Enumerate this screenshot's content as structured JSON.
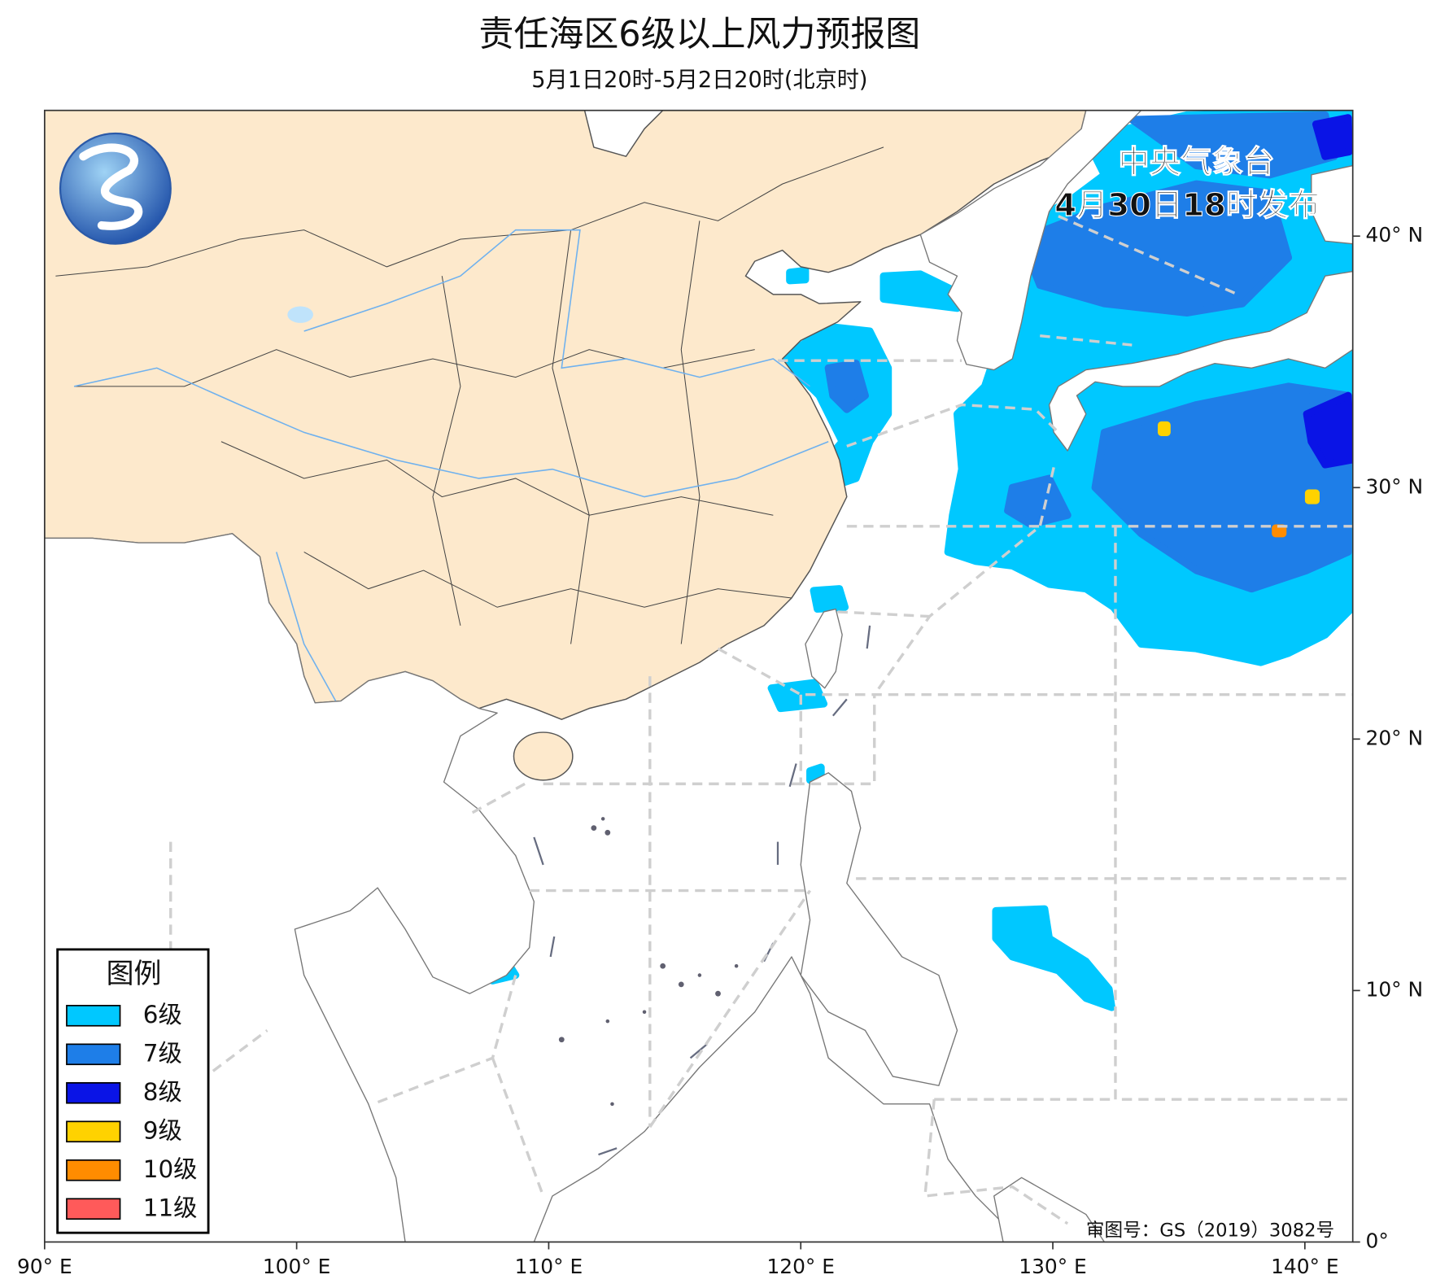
{
  "title": "责任海区6级以上风力预报图",
  "subtitle": "5月1日20时-5月2日20时(北京时)",
  "issuer": {
    "agency": "中央气象台",
    "time": "4月30日18时发布"
  },
  "map": {
    "lonlim": [
      90,
      141.9
    ],
    "latlim": [
      0,
      45
    ],
    "lon_ticks": [
      {
        "value": 90,
        "label": "90° E"
      },
      {
        "value": 100,
        "label": "100° E"
      },
      {
        "value": 110,
        "label": "110° E"
      },
      {
        "value": 120,
        "label": "120° E"
      },
      {
        "value": 130,
        "label": "130° E"
      },
      {
        "value": 140,
        "label": "140° E"
      }
    ],
    "lat_ticks": [
      {
        "value": 0,
        "label": "0°"
      },
      {
        "value": 10,
        "label": "10° N"
      },
      {
        "value": 20,
        "label": "20° N"
      },
      {
        "value": 30,
        "label": "30° N"
      },
      {
        "value": 40,
        "label": "40° N"
      }
    ]
  },
  "legend": {
    "title": "图例",
    "items": [
      {
        "label": "6级",
        "color": "#00c8ff"
      },
      {
        "label": "7级",
        "color": "#1e7ee8"
      },
      {
        "label": "8级",
        "color": "#0a14e6"
      },
      {
        "label": "9级",
        "color": "#ffd200"
      },
      {
        "label": "10级",
        "color": "#ff8c00"
      },
      {
        "label": "11级",
        "color": "#ff5a5a"
      }
    ]
  },
  "approval": "审图号：GS（2019）3082号"
}
